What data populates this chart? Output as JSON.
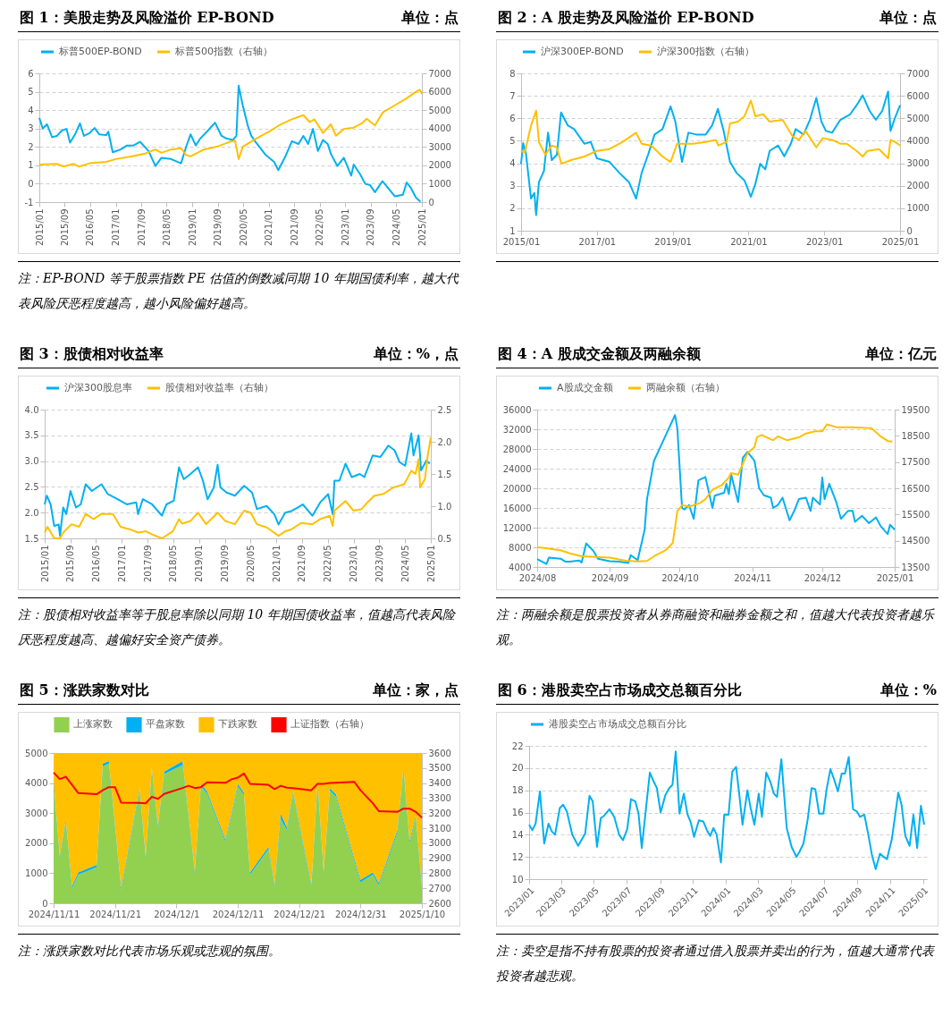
{
  "chart_data": [
    {
      "type": "line",
      "title": "图 1：美股走势及风险溢价 EP-BOND",
      "subtitle": "单位：点",
      "legend": "top",
      "grid": "y",
      "xlim": [
        "2015-01-01",
        "2025-01-01"
      ],
      "xticks": [
        {
          "value": "2015-01-01",
          "label": "2015/01"
        },
        {
          "value": "2015-09-01",
          "label": "2015/09"
        },
        {
          "value": "2016-05-01",
          "label": "2016/05"
        },
        {
          "value": "2017-01-01",
          "label": "2017/01"
        },
        {
          "value": "2017-09-01",
          "label": "2017/09"
        },
        {
          "value": "2018-05-01",
          "label": "2018/05"
        },
        {
          "value": "2019-01-01",
          "label": "2019/01"
        },
        {
          "value": "2019-09-01",
          "label": "2019/09"
        },
        {
          "value": "2020-05-01",
          "label": "2020/05"
        },
        {
          "value": "2021-01-01",
          "label": "2021/01"
        },
        {
          "value": "2021-09-01",
          "label": "2021/09"
        },
        {
          "value": "2022-05-01",
          "label": "2022/05"
        },
        {
          "value": "2023-01-01",
          "label": "2023/01"
        },
        {
          "value": "2023-09-01",
          "label": "2023/09"
        },
        {
          "value": "2024-05-01",
          "label": "2024/05"
        },
        {
          "value": "2025-01-01",
          "label": "2025/01"
        }
      ],
      "ylim": [
        -1,
        6
      ],
      "yticks": [
        -1,
        0,
        1,
        2,
        3,
        4,
        5,
        6
      ],
      "y2lim": [
        0,
        7000
      ],
      "y2ticks": [
        0,
        1000,
        2000,
        3000,
        4000,
        5000,
        6000,
        7000
      ],
      "series": [
        {
          "name": "标普500EP-BOND",
          "color": "#00b0f0",
          "x": [
            "2015-01-01",
            "2015-02-03",
            "2015-03-15",
            "2015-05-03",
            "2015-06-18",
            "2015-08-06",
            "2015-09-18",
            "2015-10-21",
            "2015-12-08",
            "2016-01-24",
            "2016-03-02",
            "2016-04-24",
            "2016-06-12",
            "2016-07-27",
            "2016-10-01",
            "2016-10-21",
            "2016-12-02",
            "2017-02-16",
            "2017-04-17",
            "2017-06-18",
            "2017-08-20",
            "2017-11-09",
            "2018-01-14",
            "2018-03-12",
            "2018-06-12",
            "2018-09-15",
            "2018-11-03",
            "2018-12-15",
            "2019-02-03",
            "2019-03-18",
            "2019-05-20",
            "2019-08-06",
            "2019-10-07",
            "2019-11-23",
            "2020-01-24",
            "2020-02-26",
            "2020-03-18",
            "2020-04-27",
            "2020-06-15",
            "2020-07-17",
            "2020-09-02",
            "2020-12-02",
            "2021-02-20",
            "2021-04-01",
            "2021-06-08",
            "2021-08-09",
            "2021-10-11",
            "2021-11-26",
            "2022-01-11",
            "2022-02-26",
            "2022-04-14",
            "2022-06-02",
            "2022-07-17",
            "2022-08-16",
            "2022-10-17",
            "2022-12-18",
            "2023-02-26",
            "2023-03-22",
            "2023-05-23",
            "2023-07-11",
            "2023-08-26",
            "2023-10-11",
            "2023-12-22",
            "2024-02-13",
            "2024-04-17",
            "2024-07-04",
            "2024-08-09",
            "2024-09-18",
            "2024-11-06",
            "2024-12-18"
          ],
          "values": [
            3.58,
            3.0,
            3.23,
            2.53,
            2.6,
            2.9,
            2.98,
            2.23,
            2.68,
            3.28,
            2.6,
            2.75,
            3.03,
            2.68,
            2.64,
            2.83,
            1.71,
            1.86,
            2.08,
            2.08,
            2.28,
            1.78,
            0.96,
            1.41,
            1.34,
            1.11,
            2.0,
            2.68,
            2.08,
            2.46,
            2.83,
            3.32,
            2.6,
            2.46,
            2.38,
            2.6,
            5.33,
            4.25,
            3.13,
            2.6,
            2.23,
            1.56,
            1.19,
            0.74,
            1.49,
            2.31,
            2.16,
            2.6,
            2.16,
            2.98,
            1.78,
            2.38,
            2.16,
            1.63,
            0.96,
            1.41,
            0.44,
            1.04,
            0.51,
            -0.01,
            -0.08,
            -0.46,
            0.14,
            -0.23,
            -0.68,
            -0.6,
            0.07,
            -0.23,
            -0.76,
            -0.98
          ]
        },
        {
          "name": "标普500指数（右轴）",
          "color": "#ffc000",
          "axis": "y2",
          "x": [
            "2015-01-01",
            "2015-06-18",
            "2015-08-20",
            "2015-11-23",
            "2016-01-17",
            "2016-04-24",
            "2016-10-01",
            "2017-01-01",
            "2017-06-05",
            "2017-10-07",
            "2018-01-14",
            "2018-03-12",
            "2018-06-12",
            "2018-09-15",
            "2018-11-03",
            "2018-12-15",
            "2019-04-21",
            "2019-08-23",
            "2019-12-25",
            "2020-02-13",
            "2020-03-18",
            "2020-04-27",
            "2020-09-02",
            "2021-01-04",
            "2021-04-07",
            "2021-08-09",
            "2021-11-26",
            "2022-01-27",
            "2022-03-12",
            "2022-06-02",
            "2022-08-16",
            "2022-10-04",
            "2022-12-18",
            "2023-03-22",
            "2023-06-08",
            "2023-07-24",
            "2023-10-11",
            "2023-12-25",
            "2024-04-14",
            "2024-08-03",
            "2024-11-06",
            "2024-12-12",
            "2025-01-01"
          ],
          "values": [
            2040,
            2080,
            1930,
            2080,
            1930,
            2110,
            2190,
            2340,
            2490,
            2640,
            2860,
            2680,
            2860,
            2930,
            2560,
            2490,
            2860,
            3010,
            3280,
            3340,
            2340,
            3010,
            3460,
            3830,
            4170,
            4500,
            4730,
            4350,
            4500,
            3760,
            4230,
            3610,
            3980,
            4050,
            4280,
            4530,
            4170,
            4880,
            5250,
            5620,
            6000,
            6100,
            5880
          ]
        }
      ],
      "annotations": [
        "注：EP-BOND 等于股票指数 PE 估值的倒数减同期 10 年期国债利率，越大代表风险厌恶程度越高，越小风险偏好越高。"
      ]
    },
    {
      "type": "line",
      "title": "图 2：A 股走势及风险溢价 EP-BOND",
      "subtitle": "单位：点",
      "legend": "top",
      "grid": "y",
      "xlim": [
        "2015-01-01",
        "2025-01-01"
      ],
      "xticks": [
        {
          "value": "2015-01-01",
          "label": "2015/01"
        },
        {
          "value": "2017-01-01",
          "label": "2017/01"
        },
        {
          "value": "2019-01-01",
          "label": "2019/01"
        },
        {
          "value": "2021-01-01",
          "label": "2021/01"
        },
        {
          "value": "2023-01-01",
          "label": "2023/01"
        },
        {
          "value": "2025-01-01",
          "label": "2025/01"
        }
      ],
      "ylim": [
        1,
        8
      ],
      "yticks": [
        1,
        2,
        3,
        4,
        5,
        6,
        7,
        8
      ],
      "y2lim": [
        0,
        7000
      ],
      "y2ticks": [
        0,
        1000,
        2000,
        3000,
        4000,
        5000,
        6000,
        7000
      ],
      "series": [
        {
          "name": "沪深300EP-BOND",
          "color": "#00b0f0",
          "x": [
            "2015-01-01",
            "2015-01-21",
            "2015-02-16",
            "2015-04-07",
            "2015-05-09",
            "2015-05-26",
            "2015-06-22",
            "2015-08-09",
            "2015-09-18",
            "2015-10-24",
            "2015-12-12",
            "2016-01-21",
            "2016-03-25",
            "2016-05-26",
            "2016-09-02",
            "2016-11-03",
            "2017-01-01",
            "2017-05-03",
            "2017-08-06",
            "2017-11-06",
            "2018-01-14",
            "2018-03-08",
            "2018-05-09",
            "2018-07-11",
            "2018-09-25",
            "2018-12-12",
            "2019-01-27",
            "2019-04-01",
            "2019-06-02",
            "2019-08-16",
            "2019-11-16",
            "2020-01-17",
            "2020-03-12",
            "2020-05-06",
            "2020-07-07",
            "2020-09-08",
            "2020-11-23",
            "2021-01-24",
            "2021-03-08",
            "2021-04-24",
            "2021-06-12",
            "2021-07-24",
            "2021-10-14",
            "2021-12-12",
            "2022-02-13",
            "2022-04-01",
            "2022-06-15",
            "2022-08-16",
            "2022-10-17",
            "2022-12-05",
            "2023-01-17",
            "2023-03-18",
            "2023-06-05",
            "2023-09-08",
            "2023-11-09",
            "2024-01-07",
            "2024-03-12",
            "2024-05-13",
            "2024-07-14",
            "2024-09-08",
            "2024-10-01",
            "2024-11-13",
            "2025-01-01"
          ],
          "values": [
            3.98,
            4.9,
            4.47,
            2.43,
            2.68,
            1.7,
            3.16,
            3.65,
            5.36,
            4.14,
            4.38,
            6.26,
            5.69,
            5.52,
            4.87,
            4.95,
            4.22,
            4.06,
            3.57,
            3.16,
            2.43,
            3.57,
            4.38,
            5.28,
            5.52,
            6.53,
            5.85,
            4.06,
            5.36,
            5.28,
            5.28,
            5.69,
            6.42,
            5.44,
            4.06,
            3.57,
            3.24,
            2.51,
            3.08,
            3.98,
            3.73,
            4.55,
            4.79,
            4.31,
            4.87,
            5.52,
            5.28,
            5.93,
            6.91,
            5.85,
            5.44,
            5.36,
            5.93,
            6.18,
            6.58,
            7.02,
            6.34,
            5.93,
            6.34,
            7.19,
            5.44,
            6.02,
            6.58
          ]
        },
        {
          "name": "沪深300指数（右轴）",
          "color": "#ffc000",
          "axis": "y2",
          "x": [
            "2015-01-01",
            "2015-02-06",
            "2015-04-07",
            "2015-05-26",
            "2015-06-22",
            "2015-08-23",
            "2015-10-24",
            "2015-12-12",
            "2016-01-24",
            "2016-04-27",
            "2016-09-02",
            "2017-01-01",
            "2017-05-03",
            "2017-09-05",
            "2018-01-14",
            "2018-03-08",
            "2018-06-08",
            "2018-09-25",
            "2018-12-12",
            "2019-02-13",
            "2019-04-14",
            "2019-07-14",
            "2019-11-16",
            "2020-02-20",
            "2020-03-18",
            "2020-06-05",
            "2020-07-07",
            "2020-09-22",
            "2020-11-23",
            "2021-01-24",
            "2021-03-08",
            "2021-05-23",
            "2021-07-24",
            "2021-11-26",
            "2022-03-02",
            "2022-05-03",
            "2022-07-04",
            "2022-10-17",
            "2022-12-18",
            "2023-03-18",
            "2023-06-05",
            "2023-08-06",
            "2023-11-09",
            "2024-01-07",
            "2024-02-23",
            "2024-06-12",
            "2024-09-08",
            "2024-10-01",
            "2024-11-13",
            "2025-01-01"
          ],
          "values": [
            3550,
            3470,
            4690,
            5340,
            3950,
            3380,
            3790,
            3710,
            2980,
            3140,
            3300,
            3550,
            3630,
            3950,
            4360,
            3870,
            3790,
            3300,
            3060,
            3870,
            3870,
            3870,
            3950,
            4040,
            3790,
            3950,
            4770,
            4850,
            5090,
            5790,
            5090,
            5180,
            4850,
            4930,
            4200,
            4040,
            4440,
            3710,
            4120,
            4040,
            3870,
            3870,
            3550,
            3300,
            3550,
            3630,
            3220,
            4040,
            3950,
            3790
          ]
        }
      ]
    },
    {
      "type": "line",
      "title": "图 3：股债相对收益率",
      "subtitle": "单位：%，点",
      "legend": "top",
      "grid": "y",
      "xlim": [
        "2015-01-01",
        "2025-01-01"
      ],
      "xticks": [
        {
          "value": "2015-01-01",
          "label": "2015/01"
        },
        {
          "value": "2015-09-01",
          "label": "2015/09"
        },
        {
          "value": "2016-05-01",
          "label": "2016/05"
        },
        {
          "value": "2017-01-01",
          "label": "2017/01"
        },
        {
          "value": "2017-09-01",
          "label": "2017/09"
        },
        {
          "value": "2018-05-01",
          "label": "2018/05"
        },
        {
          "value": "2019-01-01",
          "label": "2019/01"
        },
        {
          "value": "2019-09-01",
          "label": "2019/09"
        },
        {
          "value": "2020-05-01",
          "label": "2020/05"
        },
        {
          "value": "2021-01-01",
          "label": "2021/01"
        },
        {
          "value": "2021-09-01",
          "label": "2021/09"
        },
        {
          "value": "2022-05-01",
          "label": "2022/05"
        },
        {
          "value": "2023-01-01",
          "label": "2023/01"
        },
        {
          "value": "2023-09-01",
          "label": "2023/09"
        },
        {
          "value": "2024-05-01",
          "label": "2024/05"
        },
        {
          "value": "2025-01-01",
          "label": "2025/01"
        }
      ],
      "ylim": [
        1.5,
        4
      ],
      "yticks": [
        1.5,
        {
          "value": 2,
          "label": "2.0"
        },
        2.5,
        {
          "value": 3,
          "label": "3.0"
        },
        3.5,
        {
          "value": 4,
          "label": "4.0"
        }
      ],
      "y2lim": [
        0.5,
        2.5
      ],
      "y2ticks": [
        0.5,
        {
          "value": 1,
          "label": "1.0"
        },
        1.5,
        {
          "value": 2,
          "label": "2.0"
        },
        2.5
      ],
      "series": [
        {
          "name": "沪深300股息率",
          "color": "#00b0f0",
          "x": [
            "2015-01-01",
            "2015-01-21",
            "2015-02-26",
            "2015-04-01",
            "2015-05-13",
            "2015-05-26",
            "2015-06-25",
            "2015-07-24",
            "2015-09-02",
            "2015-10-24",
            "2015-12-08",
            "2016-01-24",
            "2016-03-22",
            "2016-06-22",
            "2016-08-20",
            "2016-11-20",
            "2017-02-16",
            "2017-05-16",
            "2017-06-02",
            "2017-07-17",
            "2017-10-14",
            "2018-01-14",
            "2018-02-26",
            "2018-05-06",
            "2018-06-25",
            "2018-08-09",
            "2018-10-11",
            "2018-12-22",
            "2019-02-06",
            "2019-03-22",
            "2019-05-20",
            "2019-06-25",
            "2019-07-21",
            "2019-09-18",
            "2019-12-05",
            "2020-03-02",
            "2020-05-16",
            "2020-07-01",
            "2020-10-01",
            "2020-12-12",
            "2021-01-21",
            "2021-03-25",
            "2021-05-23",
            "2021-07-24",
            "2021-09-08",
            "2021-12-08",
            "2022-02-20",
            "2022-05-06",
            "2022-06-18",
            "2022-07-04",
            "2022-08-20",
            "2022-10-17",
            "2022-12-15",
            "2023-03-02",
            "2023-04-14",
            "2023-07-01",
            "2023-09-12",
            "2023-11-26",
            "2024-01-24",
            "2024-03-12",
            "2024-05-03",
            "2024-07-01",
            "2024-07-21",
            "2024-09-08",
            "2024-10-01",
            "2024-11-20",
            "2024-12-22"
          ],
          "values": [
            2.16,
            2.33,
            2.16,
            1.74,
            1.77,
            1.55,
            2.1,
            1.97,
            2.42,
            2.1,
            2.16,
            2.55,
            2.42,
            2.55,
            2.36,
            2.26,
            2.16,
            2.2,
            1.97,
            2.26,
            2.16,
            1.94,
            2.16,
            2.23,
            2.88,
            2.65,
            2.75,
            2.88,
            2.62,
            2.26,
            2.49,
            2.93,
            2.49,
            2.39,
            2.33,
            2.52,
            2.39,
            2.07,
            2.13,
            1.97,
            1.77,
            2.0,
            2.03,
            2.1,
            2.16,
            1.94,
            2.2,
            2.36,
            1.97,
            2.62,
            2.62,
            2.95,
            2.69,
            2.75,
            2.69,
            3.11,
            3.08,
            3.3,
            3.21,
            2.98,
            2.91,
            3.54,
            3.11,
            3.5,
            2.82,
            3.01,
            2.95
          ]
        },
        {
          "name": "股债相对收益率（右轴）",
          "color": "#ffc000",
          "axis": "y2",
          "x": [
            "2015-01-01",
            "2015-01-27",
            "2015-04-01",
            "2015-05-26",
            "2015-06-25",
            "2015-09-12",
            "2015-11-23",
            "2016-01-24",
            "2016-04-07",
            "2016-06-22",
            "2016-10-07",
            "2016-12-18",
            "2017-03-18",
            "2017-06-02",
            "2017-08-16",
            "2017-10-14",
            "2018-01-14",
            "2018-04-27",
            "2018-06-25",
            "2018-07-24",
            "2018-10-11",
            "2018-12-22",
            "2019-03-08",
            "2019-06-25",
            "2019-09-05",
            "2019-12-05",
            "2020-03-02",
            "2020-05-03",
            "2020-07-01",
            "2020-10-01",
            "2021-01-21",
            "2021-03-25",
            "2021-05-23",
            "2021-08-23",
            "2021-12-08",
            "2022-02-20",
            "2022-05-20",
            "2022-06-18",
            "2022-07-04",
            "2022-10-17",
            "2023-01-01",
            "2023-03-15",
            "2023-05-13",
            "2023-07-14",
            "2023-10-11",
            "2024-01-11",
            "2024-04-24",
            "2024-07-01",
            "2024-08-09",
            "2024-09-08",
            "2024-09-22",
            "2024-11-06",
            "2024-12-05",
            "2025-01-01"
          ],
          "values": [
            0.59,
            0.68,
            0.5,
            0.5,
            0.59,
            0.72,
            0.68,
            0.88,
            0.8,
            0.88,
            0.88,
            0.68,
            0.64,
            0.59,
            0.61,
            0.56,
            0.5,
            0.61,
            0.8,
            0.73,
            0.77,
            0.9,
            0.72,
            0.9,
            0.77,
            0.72,
            0.93,
            0.9,
            0.72,
            0.67,
            0.54,
            0.61,
            0.64,
            0.74,
            0.72,
            0.8,
            0.85,
            0.69,
            0.93,
            1.08,
            0.93,
            0.95,
            1.06,
            1.16,
            1.19,
            1.29,
            1.34,
            1.55,
            1.5,
            1.73,
            1.29,
            1.42,
            1.81,
            2.07
          ]
        }
      ],
      "annotations": [
        "注：股债相对收益率等于股息率除以同期 10 年期国债收益率，值越高代表风险厌恶程度越高、越偏好安全资产债券。"
      ]
    },
    {
      "type": "line",
      "title": "图 4：A 股成交金额及两融余额",
      "subtitle": "单位：亿元",
      "legend": "top",
      "grid": "y",
      "xlim": [
        "2024-08-01",
        "2025-01-01"
      ],
      "xticks": [
        {
          "value": "2024-08-01",
          "label": "2024/08"
        },
        {
          "value": "2024-09-01",
          "label": "2024/09"
        },
        {
          "value": "2024-10-01",
          "label": "2024/10"
        },
        {
          "value": "2024-11-01",
          "label": "2024/11"
        },
        {
          "value": "2024-12-01",
          "label": "2024/12"
        },
        {
          "value": "2025-01-01",
          "label": "2025/01"
        }
      ],
      "ylim": [
        4000,
        36000
      ],
      "yticks": [
        4000,
        8000,
        12000,
        16000,
        20000,
        24000,
        28000,
        32000,
        36000
      ],
      "y2lim": [
        13500,
        19500
      ],
      "y2ticks": [
        13500,
        14500,
        15500,
        16500,
        17500,
        18500,
        19500
      ],
      "series": [
        {
          "name": "A股成交金额",
          "color": "#00b0f0",
          "x": [
            "2024-08-01",
            "2024-08-05",
            "2024-08-06",
            "2024-08-11",
            "2024-08-13",
            "2024-08-15",
            "2024-08-19",
            "2024-08-20",
            "2024-08-22",
            "2024-08-25",
            "2024-08-27",
            "2024-09-01",
            "2024-09-05",
            "2024-09-09",
            "2024-09-10",
            "2024-09-13",
            "2024-09-15",
            "2024-09-16",
            "2024-09-17",
            "2024-09-20",
            "2024-09-29",
            "2024-09-30",
            "2024-10-02",
            "2024-10-03",
            "2024-10-05",
            "2024-10-07",
            "2024-10-09",
            "2024-10-12",
            "2024-10-15",
            "2024-10-16",
            "2024-10-20",
            "2024-10-21",
            "2024-10-22",
            "2024-10-23",
            "2024-10-26",
            "2024-10-28",
            "2024-10-30",
            "2024-11-02",
            "2024-11-04",
            "2024-11-06",
            "2024-11-09",
            "2024-11-10",
            "2024-11-12",
            "2024-11-14",
            "2024-11-17",
            "2024-11-19",
            "2024-11-21",
            "2024-11-24",
            "2024-11-26",
            "2024-11-27",
            "2024-11-30",
            "2024-12-01",
            "2024-12-02",
            "2024-12-04",
            "2024-12-07",
            "2024-12-09",
            "2024-12-12",
            "2024-12-14",
            "2024-12-15",
            "2024-12-18",
            "2024-12-21",
            "2024-12-24",
            "2024-12-26",
            "2024-12-29",
            "2024-12-30",
            "2025-01-01"
          ],
          "values": [
            5600,
            4600,
            5900,
            5700,
            5100,
            5100,
            5300,
            4900,
            8800,
            7300,
            5700,
            5200,
            5100,
            4800,
            6400,
            5400,
            9500,
            11600,
            17800,
            25600,
            34900,
            32100,
            16000,
            15700,
            16600,
            13800,
            21600,
            22300,
            16000,
            18500,
            19100,
            20900,
            18800,
            22800,
            17200,
            26200,
            27400,
            25600,
            20000,
            18600,
            18100,
            16000,
            16600,
            18100,
            13500,
            15400,
            17800,
            18100,
            15400,
            18100,
            16700,
            22200,
            17800,
            20900,
            17200,
            13800,
            15400,
            15400,
            13200,
            14400,
            12900,
            14100,
            12300,
            10700,
            12600,
            11600
          ]
        },
        {
          "name": "两融余额（右轴）",
          "color": "#ffc000",
          "axis": "y2",
          "x": [
            "2024-08-01",
            "2024-08-11",
            "2024-08-15",
            "2024-08-20",
            "2024-09-01",
            "2024-09-08",
            "2024-09-13",
            "2024-09-17",
            "2024-09-20",
            "2024-09-25",
            "2024-09-28",
            "2024-09-30",
            "2024-10-02",
            "2024-10-05",
            "2024-10-10",
            "2024-10-12",
            "2024-10-15",
            "2024-10-19",
            "2024-10-22",
            "2024-10-23",
            "2024-10-26",
            "2024-10-30",
            "2024-11-02",
            "2024-11-03",
            "2024-11-05",
            "2024-11-10",
            "2024-11-12",
            "2024-11-16",
            "2024-11-21",
            "2024-11-24",
            "2024-11-28",
            "2024-12-01",
            "2024-12-03",
            "2024-12-07",
            "2024-12-13",
            "2024-12-22",
            "2024-12-26",
            "2024-12-29",
            "2024-12-31"
          ],
          "values": [
            14260,
            14140,
            14020,
            13910,
            13860,
            13740,
            13710,
            13730,
            13910,
            14140,
            14410,
            15630,
            15860,
            15800,
            15950,
            16090,
            16440,
            16620,
            16910,
            17080,
            17020,
            17840,
            18070,
            18440,
            18530,
            18330,
            18480,
            18330,
            18440,
            18590,
            18670,
            18670,
            18940,
            18830,
            18830,
            18790,
            18480,
            18300,
            18280
          ]
        }
      ],
      "annotations": [
        "注：两融余额是股票投资者从券商融资和融券金额之和，值越大代表投资者越乐观。"
      ]
    },
    {
      "type": "area",
      "stacked": true,
      "title": "图 5：涨跌家数对比",
      "subtitle": "单位：家，点",
      "legend": "top",
      "xlim": [
        "2024-11-11",
        "2025-01-10"
      ],
      "xticks": [
        {
          "value": "2024-11-11",
          "label": "2024/11/11"
        },
        {
          "value": "2024-11-21",
          "label": "2024/11/21"
        },
        {
          "value": "2024-12-01",
          "label": "2024/12/1"
        },
        {
          "value": "2024-12-11",
          "label": "2024/12/11"
        },
        {
          "value": "2024-12-21",
          "label": "2024/12/21"
        },
        {
          "value": "2024-12-31",
          "label": "2024/12/31"
        },
        {
          "value": "2025-01-10",
          "label": "2025/1/10"
        }
      ],
      "ylim": [
        0,
        5000
      ],
      "yticks": [
        0,
        1000,
        2000,
        3000,
        4000,
        5000
      ],
      "y2lim": [
        2600,
        3600
      ],
      "y2ticks": [
        2600,
        2700,
        2800,
        2900,
        3000,
        3100,
        3200,
        3300,
        3400,
        3500,
        3600
      ],
      "x": [
        "2024-11-11",
        "2024-11-12",
        "2024-11-13",
        "2024-11-14",
        "2024-11-15",
        "2024-11-18",
        "2024-11-19",
        "2024-11-20",
        "2024-11-21",
        "2024-11-22",
        "2024-11-25",
        "2024-11-26",
        "2024-11-27",
        "2024-11-28",
        "2024-11-29",
        "2024-12-02",
        "2024-12-03",
        "2024-12-04",
        "2024-12-05",
        "2024-12-06",
        "2024-12-09",
        "2024-12-10",
        "2024-12-11",
        "2024-12-12",
        "2024-12-13",
        "2024-12-16",
        "2024-12-17",
        "2024-12-18",
        "2024-12-19",
        "2024-12-20",
        "2024-12-23",
        "2024-12-24",
        "2024-12-25",
        "2024-12-26",
        "2024-12-27",
        "2024-12-30",
        "2024-12-31",
        "2025-01-02",
        "2025-01-03",
        "2025-01-06",
        "2025-01-07",
        "2025-01-08",
        "2025-01-09",
        "2025-01-10"
      ],
      "series": [
        {
          "name": "上涨家数",
          "color": "#92d050",
          "values": [
            4000,
            1500,
            2700,
            500,
            950,
            1200,
            4550,
            4650,
            2550,
            450,
            3750,
            1500,
            4450,
            2500,
            4300,
            4600,
            2850,
            1000,
            3900,
            3650,
            2050,
            2950,
            3900,
            3600,
            950,
            1800,
            550,
            2800,
            2450,
            3650,
            550,
            4000,
            1000,
            3750,
            3550,
            1400,
            700,
            950,
            600,
            2350,
            4450,
            2000,
            2850,
            500
          ]
        },
        {
          "name": "平盘家数",
          "color": "#00b0f0",
          "values": [
            80,
            80,
            80,
            80,
            80,
            80,
            100,
            80,
            80,
            80,
            80,
            80,
            80,
            80,
            80,
            130,
            80,
            80,
            80,
            80,
            80,
            80,
            80,
            80,
            80,
            80,
            80,
            180,
            80,
            80,
            80,
            80,
            80,
            80,
            80,
            80,
            80,
            80,
            80,
            80,
            80,
            80,
            80,
            80
          ]
        },
        {
          "name": "下跌家数",
          "color": "#ffc000",
          "values": [
            920,
            3420,
            2220,
            4420,
            3970,
            3720,
            350,
            270,
            2370,
            4470,
            1170,
            3420,
            470,
            2420,
            620,
            270,
            2070,
            3920,
            1020,
            1270,
            2870,
            1970,
            1020,
            1320,
            3970,
            3120,
            4370,
            2020,
            2470,
            1270,
            4370,
            920,
            3920,
            1170,
            1370,
            3520,
            4220,
            3970,
            4320,
            2570,
            470,
            2920,
            2070,
            4420
          ]
        },
        {
          "name": "上证指数（右轴）",
          "color": "#ff0000",
          "type": "line",
          "axis": "y2",
          "values": [
            3470,
            3427,
            3442,
            3388,
            3334,
            3326,
            3352,
            3373,
            3373,
            3270,
            3268,
            3265,
            3308,
            3295,
            3328,
            3367,
            3382,
            3367,
            3373,
            3405,
            3402,
            3425,
            3436,
            3464,
            3395,
            3388,
            3360,
            3382,
            3369,
            3367,
            3352,
            3395,
            3395,
            3400,
            3402,
            3408,
            3352,
            3266,
            3213,
            3208,
            3230,
            3230,
            3208,
            3170
          ]
        }
      ],
      "annotations": [
        "注：涨跌家数对比代表市场乐观或悲观的氛围。"
      ]
    },
    {
      "type": "line",
      "title": "图 6：港股卖空占市场成交总额百分比",
      "subtitle": "单位：%",
      "legend": "top",
      "grid": "y",
      "xlim": [
        "2023-01-01",
        "2025-01-08"
      ],
      "xticks": [
        {
          "value": "2023-01-01",
          "label": "2023/01"
        },
        {
          "value": "2023-03-01",
          "label": "2023/03"
        },
        {
          "value": "2023-05-01",
          "label": "2023/05"
        },
        {
          "value": "2023-07-01",
          "label": "2023/07"
        },
        {
          "value": "2023-09-01",
          "label": "2023/09"
        },
        {
          "value": "2023-11-01",
          "label": "2023/11"
        },
        {
          "value": "2024-01-01",
          "label": "2024/01"
        },
        {
          "value": "2024-03-01",
          "label": "2024/03"
        },
        {
          "value": "2024-05-01",
          "label": "2024/05"
        },
        {
          "value": "2024-07-01",
          "label": "2024/07"
        },
        {
          "value": "2024-09-01",
          "label": "2024/09"
        },
        {
          "value": "2024-11-01",
          "label": "2024/11"
        },
        {
          "value": "2025-01-01",
          "label": "2025/01"
        }
      ],
      "ylim": [
        10,
        22
      ],
      "yticks": [
        10,
        12,
        14,
        16,
        18,
        20,
        22
      ],
      "series": [
        {
          "name": "港股卖空占市场成交总额百分比",
          "color": "#00b0f0",
          "x": [
            "2023-01-01",
            "2023-01-07",
            "2023-01-13",
            "2023-01-21",
            "2023-01-29",
            "2023-02-06",
            "2023-02-12",
            "2023-02-18",
            "2023-02-27",
            "2023-03-05",
            "2023-03-12",
            "2023-03-22",
            "2023-04-02",
            "2023-04-15",
            "2023-04-23",
            "2023-04-29",
            "2023-05-07",
            "2023-05-14",
            "2023-05-20",
            "2023-05-30",
            "2023-06-08",
            "2023-06-17",
            "2023-06-24",
            "2023-07-02",
            "2023-07-09",
            "2023-07-17",
            "2023-07-23",
            "2023-07-29",
            "2023-08-07",
            "2023-08-13",
            "2023-08-19",
            "2023-08-26",
            "2023-09-02",
            "2023-09-11",
            "2023-09-18",
            "2023-09-24",
            "2023-09-30",
            "2023-10-07",
            "2023-10-15",
            "2023-10-22",
            "2023-10-28",
            "2023-11-03",
            "2023-11-12",
            "2023-11-20",
            "2023-11-28",
            "2023-12-03",
            "2023-12-09",
            "2023-12-15",
            "2023-12-23",
            "2023-12-29",
            "2024-01-06",
            "2024-01-13",
            "2024-01-20",
            "2024-01-26",
            "2024-02-01",
            "2024-02-10",
            "2024-02-16",
            "2024-02-23",
            "2024-03-02",
            "2024-03-08",
            "2024-03-16",
            "2024-03-24",
            "2024-03-30",
            "2024-04-05",
            "2024-04-13",
            "2024-04-23",
            "2024-05-02",
            "2024-05-11",
            "2024-05-17",
            "2024-05-24",
            "2024-06-01",
            "2024-06-08",
            "2024-06-15",
            "2024-06-22",
            "2024-06-30",
            "2024-07-06",
            "2024-07-13",
            "2024-07-19",
            "2024-07-27",
            "2024-08-03",
            "2024-08-09",
            "2024-08-16",
            "2024-08-24",
            "2024-08-31",
            "2024-09-06",
            "2024-09-14",
            "2024-09-21",
            "2024-09-28",
            "2024-10-05",
            "2024-10-13",
            "2024-10-20",
            "2024-10-26",
            "2024-11-04",
            "2024-11-16",
            "2024-11-22",
            "2024-11-29",
            "2024-12-07",
            "2024-12-14",
            "2024-12-21",
            "2024-12-28",
            "2025-01-03"
          ],
          "values": [
            14.9,
            14.4,
            15.0,
            17.9,
            13.2,
            15.0,
            14.3,
            14.0,
            16.4,
            16.7,
            16.1,
            14.0,
            13.0,
            14.1,
            17.5,
            17.0,
            12.9,
            15.5,
            15.7,
            16.3,
            15.6,
            14.0,
            13.5,
            14.5,
            17.2,
            17.0,
            15.9,
            12.8,
            16.9,
            19.6,
            18.9,
            18.2,
            16.0,
            17.6,
            18.2,
            18.5,
            21.5,
            15.9,
            17.7,
            15.8,
            15.1,
            13.8,
            15.3,
            15.2,
            14.3,
            13.9,
            14.6,
            14.0,
            11.5,
            15.8,
            15.8,
            19.7,
            20.1,
            17.6,
            14.9,
            18.0,
            16.4,
            14.9,
            17.7,
            15.6,
            19.6,
            18.7,
            17.7,
            17.4,
            20.8,
            14.6,
            12.9,
            12.0,
            12.5,
            13.2,
            15.4,
            18.2,
            18.1,
            15.9,
            15.9,
            18.1,
            19.9,
            19.1,
            17.9,
            19.5,
            19.5,
            21.0,
            16.3,
            16.1,
            15.6,
            15.8,
            14.1,
            12.2,
            10.9,
            12.3,
            12.0,
            11.8,
            13.6,
            17.8,
            16.7,
            13.9,
            13.0,
            15.8,
            12.8,
            16.6,
            14.9
          ]
        }
      ],
      "annotations": [
        "注：卖空是指不持有股票的投资者通过借入股票并卖出的行为，值越大通常代表投资者越悲观。"
      ]
    }
  ]
}
